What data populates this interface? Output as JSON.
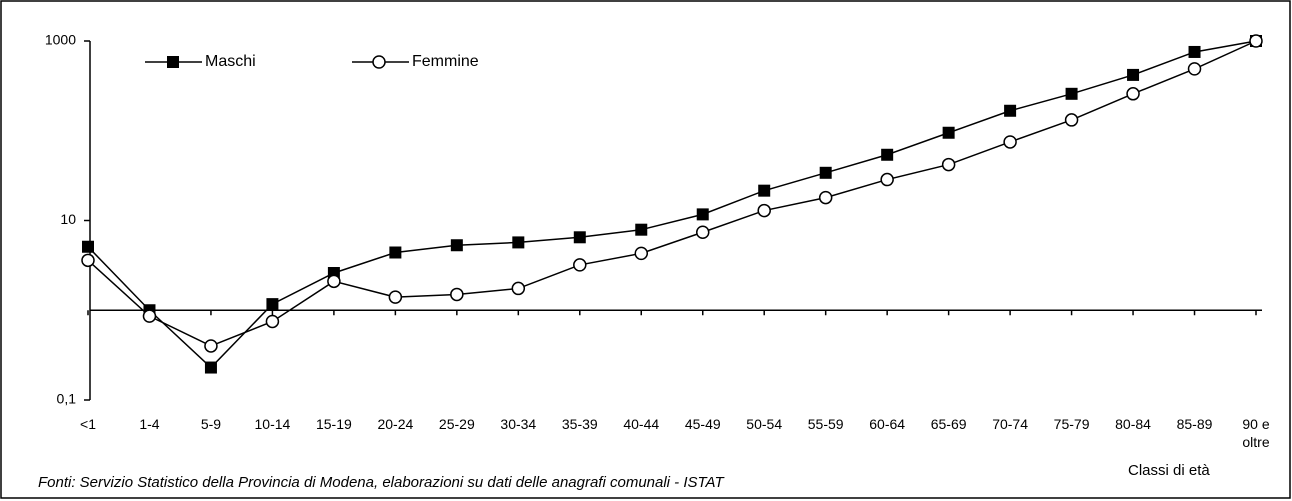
{
  "chart_data": {
    "type": "line",
    "x_label": "Classi di età",
    "source": "Fonti: Servizio Statistico della Provincia di Modena, elaborazioni su dati delle anagrafi comunali - ISTAT",
    "categories": [
      "<1",
      "1-4",
      "5-9",
      "10-14",
      "15-19",
      "20-24",
      "25-29",
      "30-34",
      "35-39",
      "40-44",
      "45-49",
      "50-54",
      "55-59",
      "60-64",
      "65-69",
      "70-74",
      "75-79",
      "80-84",
      "85-89",
      "90 e oltre"
    ],
    "series": [
      {
        "name": "Maschi",
        "color": "#000000",
        "marker": "square",
        "values": [
          5.1,
          1.0,
          0.23,
          1.17,
          2.6,
          4.4,
          5.3,
          5.7,
          6.5,
          7.9,
          11.7,
          21.5,
          34,
          54,
          95,
          167,
          258,
          419,
          755,
          1000
        ]
      },
      {
        "name": "Femmine",
        "color": "#000000",
        "marker": "circle",
        "values": [
          3.6,
          0.86,
          0.4,
          0.75,
          2.1,
          1.4,
          1.5,
          1.75,
          3.2,
          4.3,
          7.4,
          12.9,
          18,
          28.6,
          42,
          75,
          132,
          258,
          489,
          1000
        ]
      }
    ],
    "log_scale": true,
    "ylim": [
      0.1,
      1000
    ],
    "yticks": [
      1000,
      10,
      {
        "value": 0.1,
        "label": "0,1"
      }
    ],
    "xaxis_crosses": 1,
    "legend": "top-left"
  }
}
